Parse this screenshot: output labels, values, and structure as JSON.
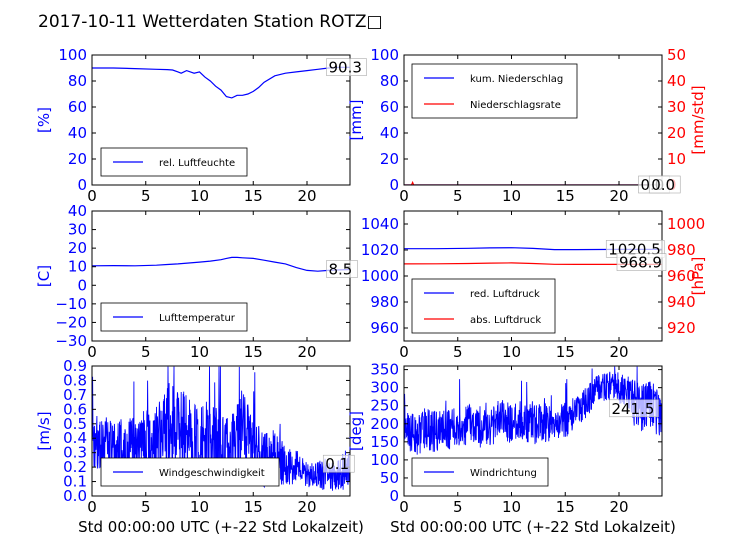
{
  "title": "2017-10-11 Wetterdaten Station ROTZ□",
  "colors": {
    "blue": "#0000ff",
    "red": "#ff0000",
    "black": "#000000"
  },
  "chart_data": [
    {
      "id": "humidity",
      "type": "line",
      "xlim": [
        0,
        24
      ],
      "xticks": [
        "0",
        "5",
        "10",
        "15",
        "20"
      ],
      "ylim": [
        0,
        100
      ],
      "yticks": [
        "0",
        "20",
        "40",
        "60",
        "80",
        "100"
      ],
      "ylabel": "[%]",
      "xlabel": "",
      "series": [
        {
          "name": "rel. Luftfeuchte",
          "color": "#0000ff",
          "legend": true,
          "x": [
            0,
            2,
            4,
            6,
            7,
            7.5,
            8,
            8.3,
            8.8,
            9.5,
            10,
            10.5,
            11,
            11.5,
            12,
            12.5,
            13,
            13.5,
            14,
            14.5,
            15,
            15.5,
            16,
            17,
            18,
            19,
            20,
            21,
            22,
            23,
            24
          ],
          "y": [
            90,
            90,
            89.5,
            89,
            88.8,
            88.5,
            87,
            86,
            88,
            86,
            87,
            83,
            80,
            76,
            73,
            68,
            67,
            69,
            69,
            70,
            72,
            75,
            79,
            84,
            86,
            87,
            88,
            89,
            90,
            90.5,
            90.5
          ]
        }
      ],
      "labels": [
        {
          "text": "90.3",
          "x": 22,
          "y": 90.3
        }
      ]
    },
    {
      "id": "precip",
      "type": "line",
      "xlim": [
        0,
        24
      ],
      "xticks": [
        "0",
        "5",
        "10",
        "15",
        "20"
      ],
      "ylim": [
        0,
        100
      ],
      "yticks": [
        "0",
        "20",
        "40",
        "60",
        "80",
        "100"
      ],
      "ylabel": "[mm]",
      "xlabel": "",
      "ylim2": [
        0,
        50
      ],
      "yticks2": [
        "0",
        "10",
        "20",
        "30",
        "40",
        "50"
      ],
      "ylabel2": "[mm/std]",
      "series": [
        {
          "name": "kum. Niederschlag",
          "color": "#0000ff",
          "legend": true,
          "x": [
            0,
            24
          ],
          "y": [
            0,
            0
          ]
        },
        {
          "name": "Niederschlagsrate",
          "color": "#ff0000",
          "legend": true,
          "axis": 2,
          "x": [
            0,
            0.7,
            0.8,
            0.9,
            24
          ],
          "y": [
            0,
            0,
            1,
            0,
            0
          ]
        }
      ],
      "labels": [
        {
          "text": "0.0",
          "x": 22,
          "y": 0
        },
        {
          "text": "0.0",
          "x": 23,
          "y": 0
        }
      ]
    },
    {
      "id": "temperature",
      "type": "line",
      "xlim": [
        0,
        24
      ],
      "xticks": [
        "0",
        "5",
        "10",
        "15",
        "20"
      ],
      "ylim": [
        -30,
        40
      ],
      "yticks": [
        "−30",
        "−20",
        "−10",
        "0",
        "10",
        "20",
        "30",
        "40"
      ],
      "ylabel": "[C]",
      "xlabel": "",
      "series": [
        {
          "name": "Lufttemperatur",
          "color": "#0000ff",
          "legend": true,
          "x": [
            0,
            2,
            4,
            6,
            7,
            8,
            9,
            10,
            11,
            12,
            12.5,
            13,
            13.5,
            14,
            15,
            16,
            17,
            18,
            19,
            20,
            21,
            22,
            23,
            24
          ],
          "y": [
            10.5,
            10.6,
            10.5,
            10.8,
            11.2,
            11.5,
            12,
            12.5,
            13,
            13.8,
            14.5,
            15,
            15,
            14.8,
            14.5,
            13.5,
            12.5,
            11.5,
            9.5,
            8,
            7.6,
            8,
            8.3,
            8.5
          ]
        }
      ],
      "labels": [
        {
          "text": "8.5",
          "x": 22,
          "y": 8.5
        }
      ]
    },
    {
      "id": "pressure",
      "type": "line",
      "xlim": [
        0,
        24
      ],
      "xticks": [
        "0",
        "5",
        "10",
        "15",
        "20"
      ],
      "ylim": [
        950,
        1050
      ],
      "yticks": [
        "960",
        "980",
        "1000",
        "1020",
        "1040"
      ],
      "ylabel": "",
      "xlabel": "",
      "ylim2": [
        910,
        1010
      ],
      "yticks2": [
        "920",
        "940",
        "960",
        "980",
        "1000"
      ],
      "ylabel2": "[hPa]",
      "series": [
        {
          "name": "red. Luftdruck",
          "color": "#0000ff",
          "legend": true,
          "x": [
            0,
            3,
            6,
            8,
            10,
            12,
            14,
            16,
            18,
            20,
            22,
            24
          ],
          "y": [
            1021,
            1021,
            1021.3,
            1021.6,
            1021.8,
            1021.2,
            1020.3,
            1020.3,
            1020.4,
            1020.5,
            1020.5,
            1020.5
          ]
        },
        {
          "name": "abs. Luftdruck",
          "color": "#ff0000",
          "legend": true,
          "axis": 2,
          "x": [
            0,
            3,
            6,
            8,
            10,
            12,
            14,
            16,
            18,
            20,
            22,
            24
          ],
          "y": [
            969.3,
            969.4,
            969.6,
            969.9,
            970.1,
            969.6,
            969,
            968.9,
            968.9,
            968.9,
            968.9,
            968.9
          ]
        }
      ],
      "labels": [
        {
          "text": "1020.5",
          "x": 19,
          "y": 1020.5
        },
        {
          "text": "968.9",
          "x": 20,
          "y": 1010.3
        }
      ]
    },
    {
      "id": "windspeed",
      "type": "line",
      "xlim": [
        0,
        24
      ],
      "xticks": [
        "0",
        "5",
        "10",
        "15",
        "20"
      ],
      "ylim": [
        0,
        0.9
      ],
      "yticks": [
        "0.0",
        "0.1",
        "0.2",
        "0.3",
        "0.4",
        "0.5",
        "0.6",
        "0.7",
        "0.8",
        "0.9"
      ],
      "ylabel": "[m/s]",
      "xlabel": "Std 00:00:00 UTC (+-22 Std Lokalzeit)",
      "series": [
        {
          "name": "Windgeschwindigkeit",
          "color": "#0000ff",
          "legend": true,
          "noisy": true,
          "x": [
            0,
            1,
            2,
            3,
            4,
            5,
            6,
            7,
            7.5,
            8,
            9,
            10,
            11,
            12,
            13,
            14,
            15,
            16,
            17,
            18,
            19,
            20,
            21,
            22,
            23,
            24
          ],
          "y": [
            0.35,
            0.4,
            0.3,
            0.35,
            0.3,
            0.35,
            0.4,
            0.45,
            0.55,
            0.45,
            0.4,
            0.38,
            0.35,
            0.35,
            0.3,
            0.45,
            0.3,
            0.25,
            0.28,
            0.2,
            0.2,
            0.15,
            0.15,
            0.13,
            0.15,
            0.2
          ],
          "amp": [
            0.2,
            0.2,
            0.2,
            0.2,
            0.25,
            0.25,
            0.25,
            0.3,
            0.35,
            0.3,
            0.3,
            0.28,
            0.3,
            0.25,
            0.25,
            0.3,
            0.25,
            0.2,
            0.2,
            0.15,
            0.12,
            0.1,
            0.1,
            0.1,
            0.12,
            0.15
          ]
        }
      ],
      "labels": [
        {
          "text": "0.1",
          "x": 21.7,
          "y": 0.22
        }
      ]
    },
    {
      "id": "winddir",
      "type": "line",
      "xlim": [
        0,
        24
      ],
      "xticks": [
        "0",
        "5",
        "10",
        "15",
        "20"
      ],
      "ylim": [
        0,
        360
      ],
      "yticks": [
        "0",
        "50",
        "100",
        "150",
        "200",
        "250",
        "300",
        "350"
      ],
      "ylabel": "[deg]",
      "xlabel": "Std 00:00:00 UTC (+-22 Std Lokalzeit)",
      "series": [
        {
          "name": "Windrichtung",
          "color": "#0000ff",
          "legend": true,
          "noisy": true,
          "x": [
            0,
            1,
            2,
            3,
            4,
            5,
            6,
            7,
            8,
            9,
            10,
            11,
            12,
            13,
            14,
            15,
            16,
            17,
            17.5,
            18,
            19,
            20,
            21,
            22,
            23,
            24
          ],
          "y": [
            190,
            170,
            185,
            175,
            190,
            180,
            200,
            185,
            190,
            215,
            200,
            210,
            195,
            205,
            195,
            210,
            230,
            260,
            280,
            300,
            305,
            300,
            270,
            240,
            250,
            220
          ],
          "amp": [
            60,
            60,
            60,
            60,
            60,
            60,
            55,
            55,
            55,
            55,
            55,
            55,
            55,
            55,
            50,
            50,
            45,
            45,
            40,
            40,
            40,
            45,
            60,
            70,
            70,
            60
          ]
        }
      ],
      "labels": [
        {
          "text": "241.5",
          "x": 19.3,
          "y": 241.5
        }
      ]
    }
  ]
}
